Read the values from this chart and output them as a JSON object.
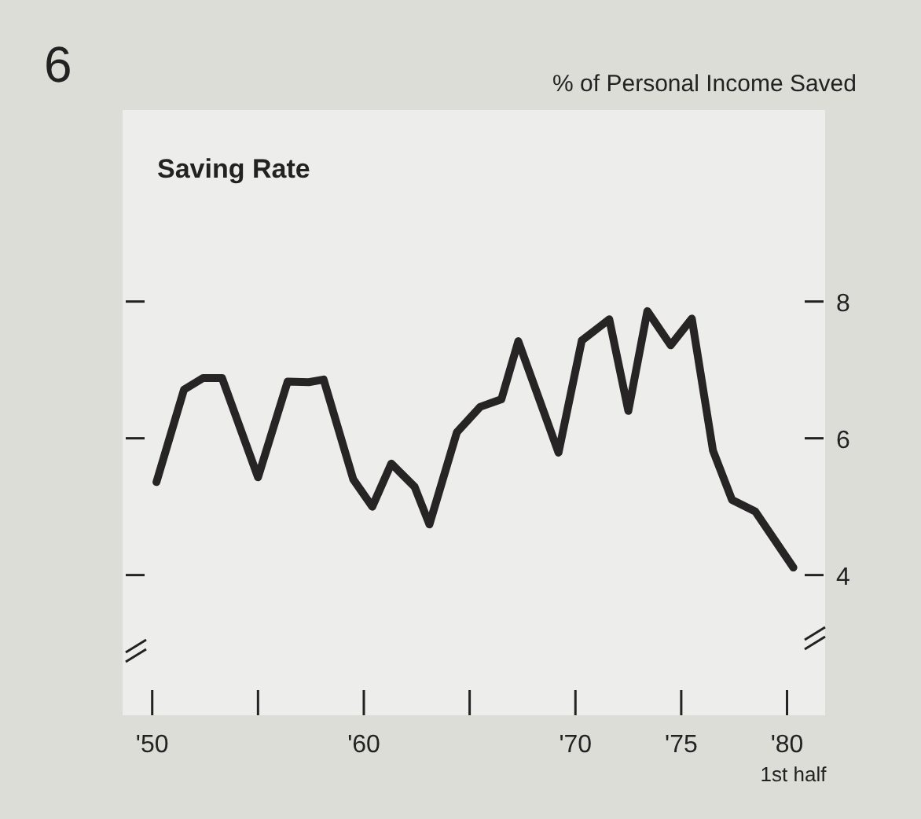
{
  "chart_data": {
    "type": "line",
    "title": "Saving Rate",
    "subtitle": "6",
    "ylabel": "% of Personal Income Saved",
    "x": [
      1950.2,
      1951.5,
      1952.4,
      1953.3,
      1955.0,
      1956.4,
      1957.4,
      1958.1,
      1959.5,
      1960.4,
      1961.3,
      1962.4,
      1963.1,
      1964.4,
      1965.5,
      1966.5,
      1967.3,
      1969.2,
      1970.3,
      1971.6,
      1972.5,
      1973.4,
      1974.5,
      1975.5,
      1976.5,
      1977.4,
      1978.5,
      1980.3
    ],
    "series": [
      {
        "color": "#262424",
        "values": [
          5.36,
          6.71,
          6.88,
          6.88,
          5.43,
          6.83,
          6.82,
          6.86,
          5.4,
          5.0,
          5.63,
          5.29,
          4.74,
          6.09,
          6.46,
          6.57,
          7.42,
          5.79,
          7.43,
          7.74,
          6.4,
          7.86,
          7.36,
          7.75,
          5.82,
          5.1,
          4.93,
          4.11
        ]
      }
    ],
    "xlim": [
      1948.6,
      1981.8
    ],
    "ylim": [
      1.95,
      10.8
    ],
    "annotations": [
      "1st half"
    ],
    "xticks": [
      {
        "value": 1950,
        "label": "'50"
      },
      {
        "value": 1955,
        "label": null
      },
      {
        "value": 1960,
        "label": "'60"
      },
      {
        "value": 1965,
        "label": null
      },
      {
        "value": 1970,
        "label": "'70"
      },
      {
        "value": 1975,
        "label": "'75"
      },
      {
        "value": 1980,
        "label": "'80"
      }
    ],
    "yticks": [
      4,
      6,
      8
    ],
    "grid": false,
    "marker": "none",
    "line_style": "solid"
  }
}
